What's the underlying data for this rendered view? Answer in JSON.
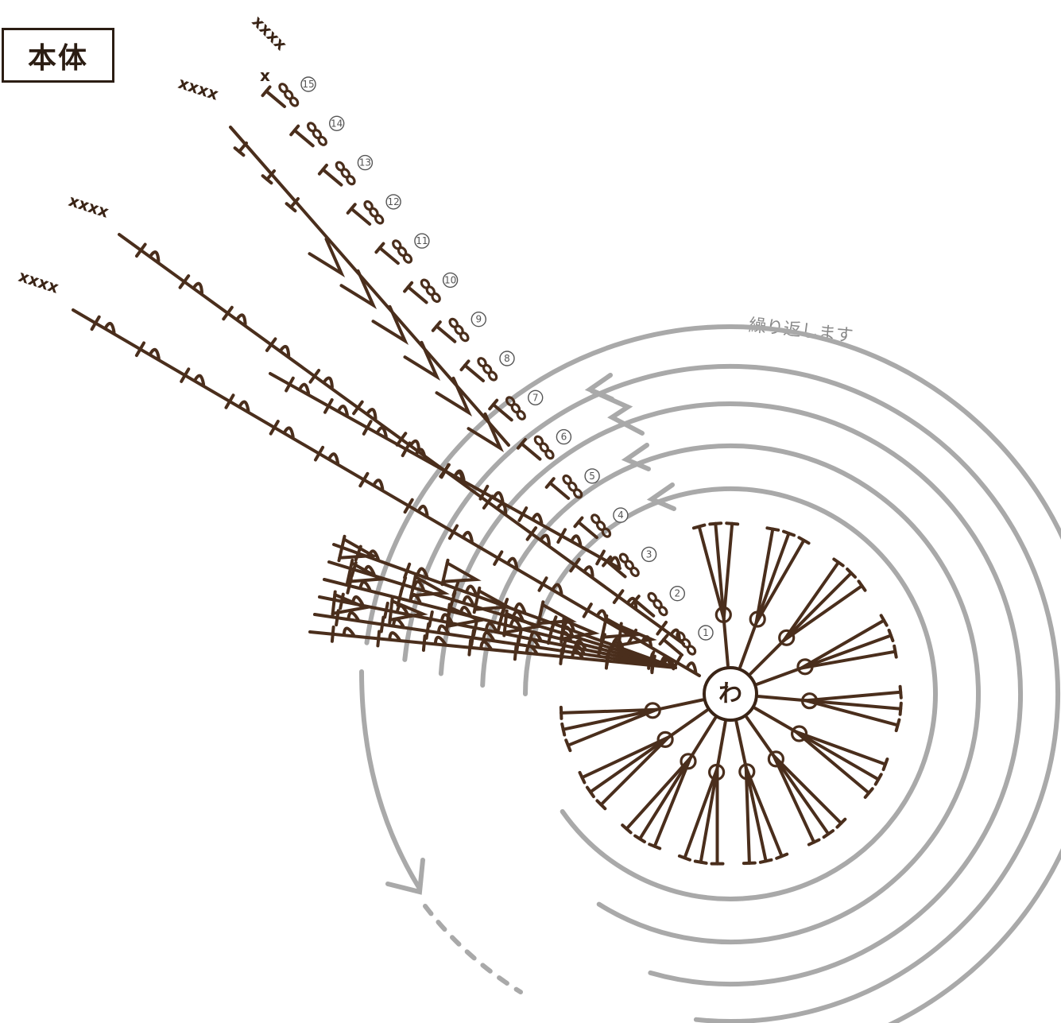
{
  "title": "本体",
  "repeat_note": "繰り返します",
  "center_label": "わ",
  "row_numbers": [
    "1",
    "2",
    "3",
    "4",
    "5",
    "6",
    "7",
    "8",
    "9",
    "10",
    "11",
    "12",
    "13",
    "14",
    "15"
  ],
  "edge_marks": [
    "xxxx",
    "x",
    "xxxx",
    "xxxx",
    "xxxx"
  ],
  "colors": {
    "stitch": "#4a2e1c",
    "arrow": "#a9a9a9",
    "text": "#2b1d13"
  }
}
